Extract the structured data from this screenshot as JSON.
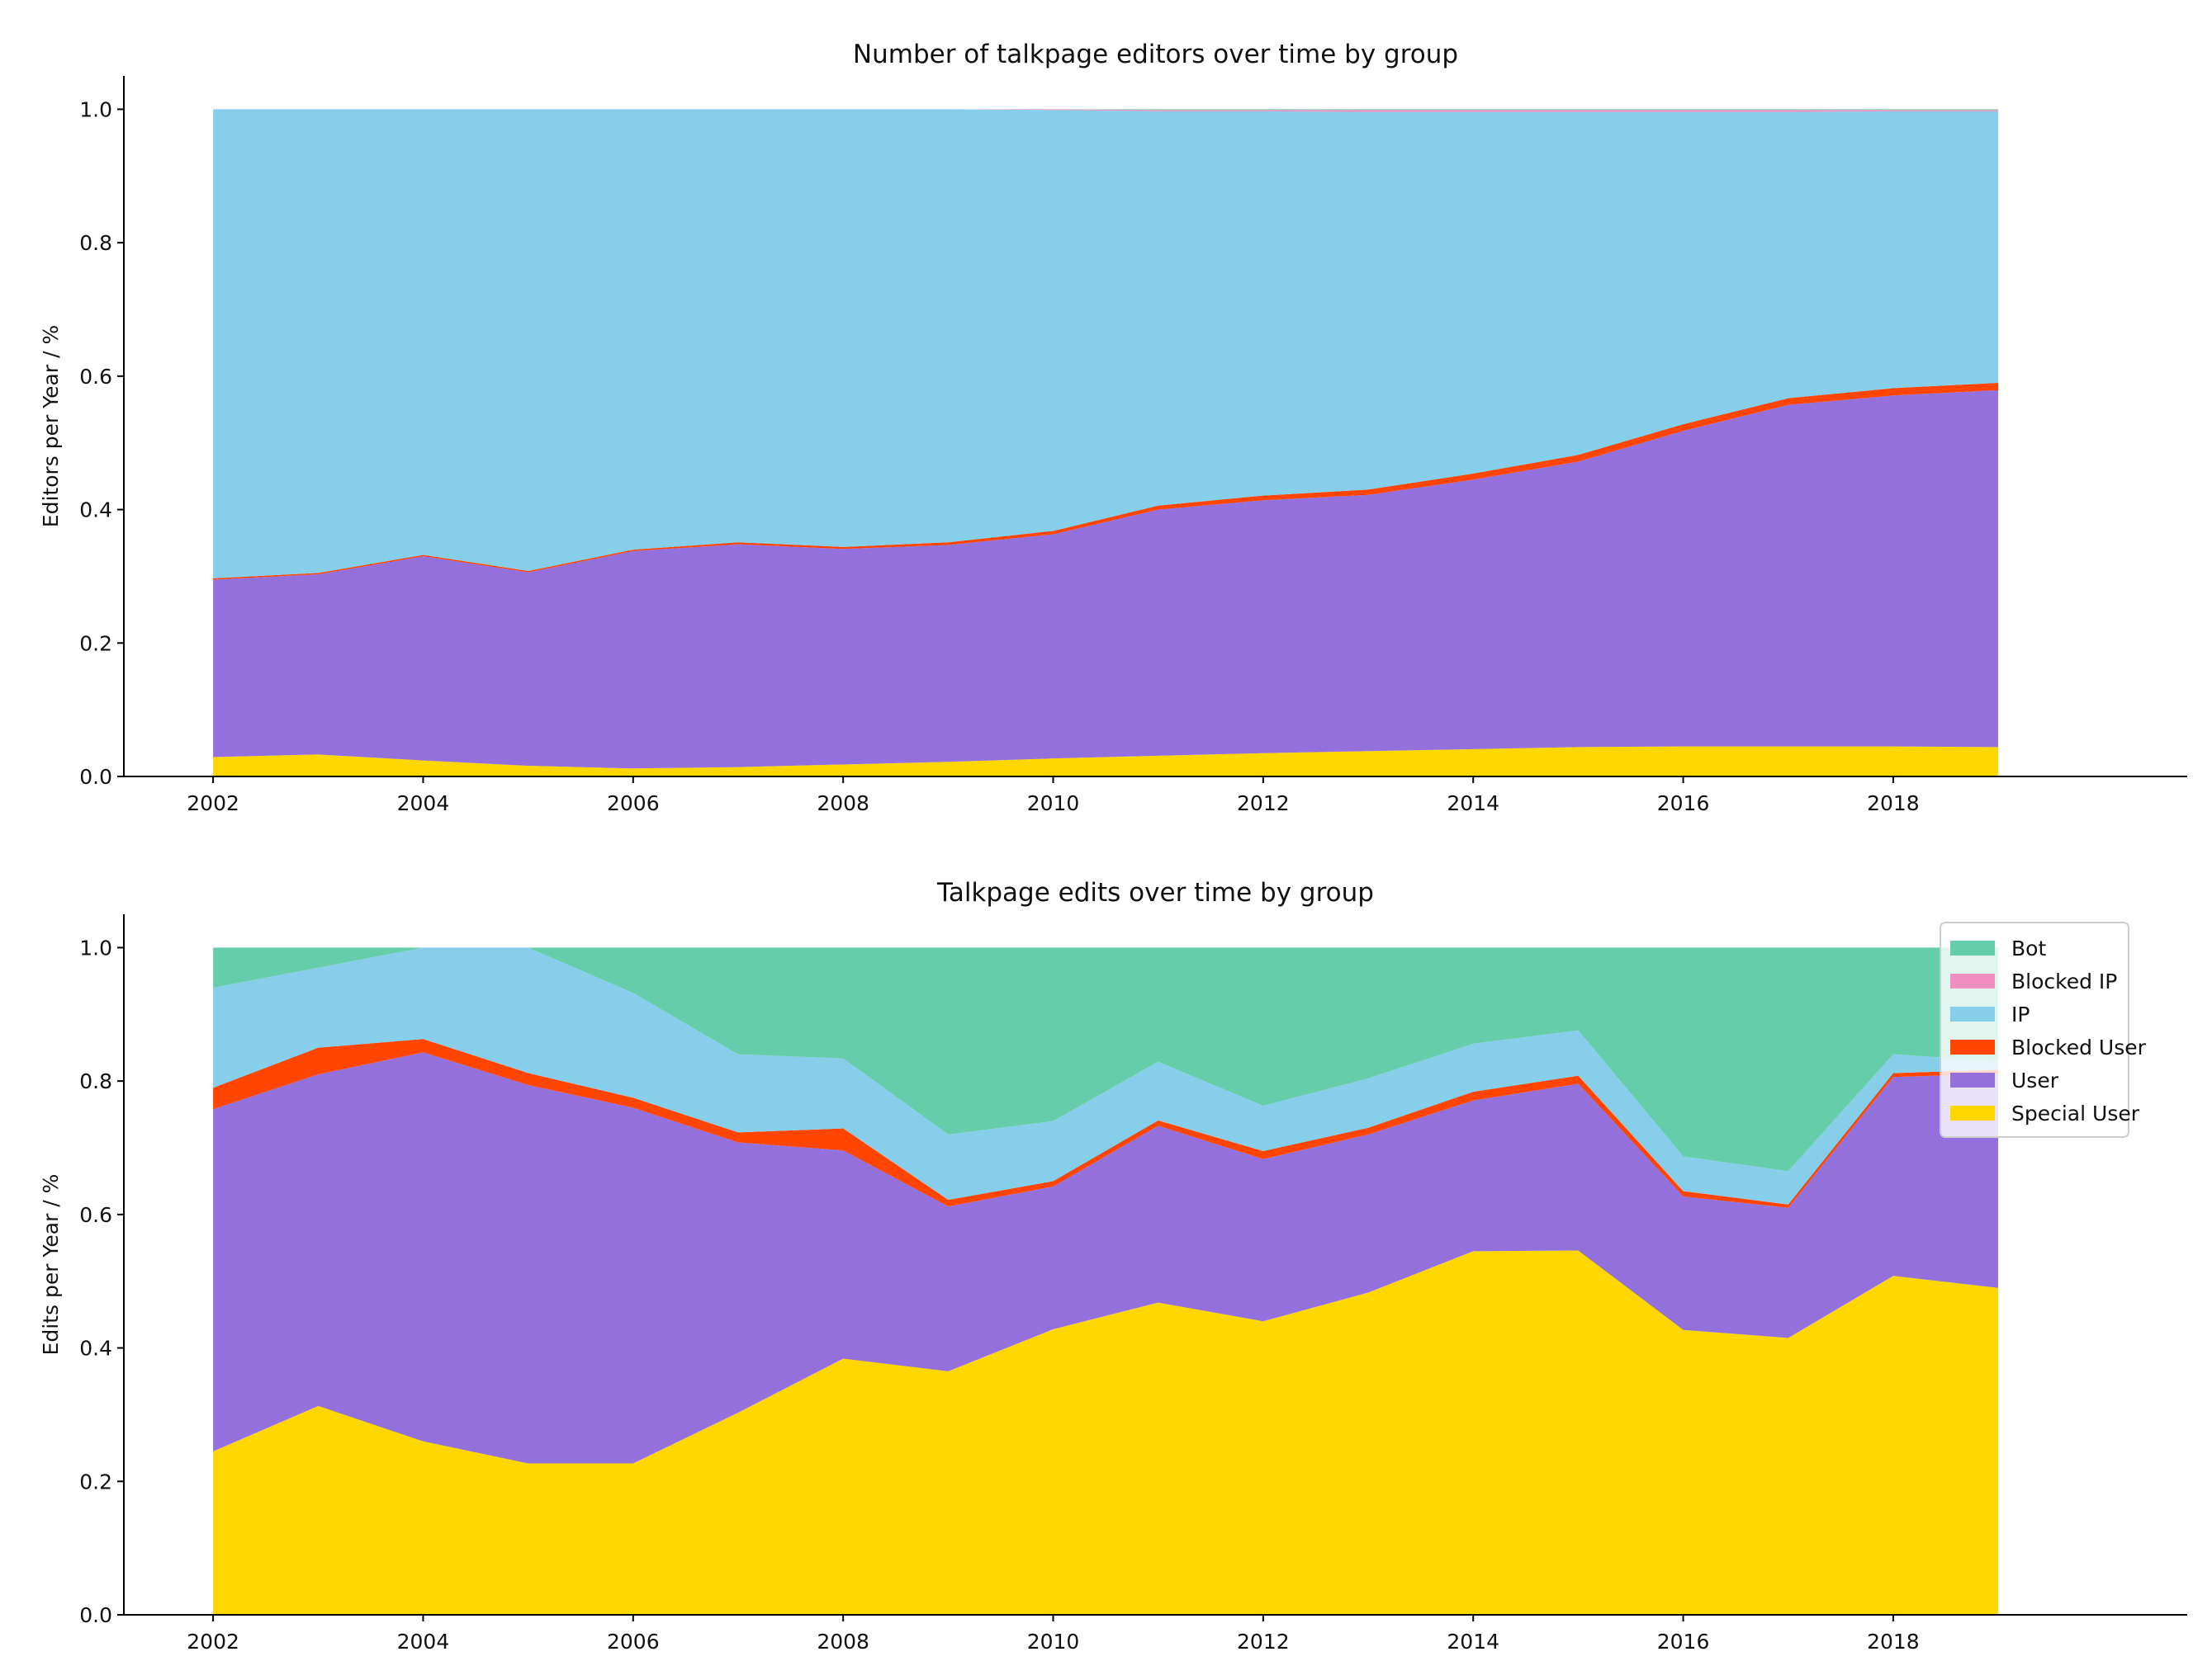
{
  "colors": {
    "Bot": "#66cdaa",
    "Blocked IP": "#f08fbf",
    "IP": "#87ceeb",
    "Blocked User": "#ff4500",
    "User": "#9370db",
    "Special User": "#ffd700"
  },
  "legend": {
    "entries": [
      "Bot",
      "Blocked IP",
      "IP",
      "Blocked User",
      "User",
      "Special User"
    ],
    "placement": "top-right of lower chart"
  },
  "chart_data": [
    {
      "type": "area",
      "stacked": true,
      "title": "Number of talkpage editors over time by group",
      "xlabel": "",
      "ylabel": "Editors per Year / %",
      "xlim": [
        2001.15,
        2020.8
      ],
      "ylim": [
        0,
        1.05
      ],
      "xticks": [
        "2002",
        "2004",
        "2006",
        "2008",
        "2010",
        "2012",
        "2014",
        "2016",
        "2018"
      ],
      "yticks": [
        "0.0",
        "0.2",
        "0.4",
        "0.6",
        "0.8",
        "1.0"
      ],
      "x": [
        2002,
        2003,
        2004,
        2005,
        2006,
        2007,
        2008,
        2009,
        2010,
        2011,
        2012,
        2013,
        2014,
        2015,
        2016,
        2017,
        2018,
        2019
      ],
      "series": [
        {
          "name": "Special User",
          "values": [
            0.029,
            0.033,
            0.024,
            0.016,
            0.012,
            0.014,
            0.018,
            0.022,
            0.027,
            0.031,
            0.035,
            0.038,
            0.041,
            0.044,
            0.045,
            0.045,
            0.045,
            0.044
          ]
        },
        {
          "name": "User",
          "values": [
            0.266,
            0.27,
            0.306,
            0.29,
            0.326,
            0.334,
            0.323,
            0.325,
            0.336,
            0.369,
            0.379,
            0.384,
            0.404,
            0.428,
            0.473,
            0.512,
            0.526,
            0.535
          ]
        },
        {
          "name": "Blocked User",
          "values": [
            0.002,
            0.002,
            0.002,
            0.002,
            0.002,
            0.003,
            0.003,
            0.004,
            0.005,
            0.006,
            0.007,
            0.008,
            0.009,
            0.01,
            0.01,
            0.01,
            0.011,
            0.011
          ]
        },
        {
          "name": "IP",
          "values": [
            0.703,
            0.695,
            0.668,
            0.692,
            0.66,
            0.649,
            0.656,
            0.649,
            0.631,
            0.591,
            0.576,
            0.566,
            0.542,
            0.514,
            0.468,
            0.429,
            0.415,
            0.407
          ]
        },
        {
          "name": "Blocked IP",
          "values": [
            0,
            0,
            0,
            0,
            0,
            0,
            0,
            0,
            0.001,
            0.002,
            0.002,
            0.003,
            0.003,
            0.003,
            0.003,
            0.003,
            0.002,
            0.002
          ]
        },
        {
          "name": "Bot",
          "values": [
            0,
            0,
            0,
            0,
            0,
            0,
            0,
            0,
            0,
            0.001,
            0.001,
            0.001,
            0.001,
            0.001,
            0.001,
            0.001,
            0.001,
            0.001
          ]
        }
      ]
    },
    {
      "type": "area",
      "stacked": true,
      "title": "Talkpage edits over time by group",
      "xlabel": "",
      "ylabel": "Edits per Year / %",
      "xlim": [
        2001.15,
        2020.8
      ],
      "ylim": [
        0,
        1.05
      ],
      "xticks": [
        "2002",
        "2004",
        "2006",
        "2008",
        "2010",
        "2012",
        "2014",
        "2016",
        "2018"
      ],
      "yticks": [
        "0.0",
        "0.2",
        "0.4",
        "0.6",
        "0.8",
        "1.0"
      ],
      "x": [
        2002,
        2003,
        2004,
        2005,
        2006,
        2007,
        2008,
        2009,
        2010,
        2011,
        2012,
        2013,
        2014,
        2015,
        2016,
        2017,
        2018,
        2019
      ],
      "series": [
        {
          "name": "Special User",
          "values": [
            0.245,
            0.313,
            0.26,
            0.227,
            0.227,
            0.303,
            0.384,
            0.365,
            0.428,
            0.468,
            0.44,
            0.483,
            0.545,
            0.546,
            0.427,
            0.415,
            0.508,
            0.49
          ]
        },
        {
          "name": "User",
          "values": [
            0.513,
            0.497,
            0.583,
            0.567,
            0.533,
            0.405,
            0.312,
            0.247,
            0.214,
            0.265,
            0.243,
            0.237,
            0.226,
            0.25,
            0.2,
            0.195,
            0.298,
            0.321
          ]
        },
        {
          "name": "Blocked User",
          "values": [
            0.032,
            0.04,
            0.02,
            0.018,
            0.015,
            0.015,
            0.033,
            0.01,
            0.008,
            0.008,
            0.012,
            0.01,
            0.013,
            0.012,
            0.008,
            0.005,
            0.006,
            0.006
          ]
        },
        {
          "name": "IP",
          "values": [
            0.15,
            0.12,
            0.137,
            0.188,
            0.157,
            0.117,
            0.105,
            0.098,
            0.09,
            0.088,
            0.068,
            0.074,
            0.072,
            0.068,
            0.052,
            0.05,
            0.028,
            0.013
          ]
        },
        {
          "name": "Blocked IP",
          "values": [
            0,
            0,
            0,
            0,
            0,
            0,
            0,
            0,
            0,
            0,
            0,
            0,
            0,
            0,
            0,
            0,
            0,
            0
          ]
        },
        {
          "name": "Bot",
          "values": [
            0.06,
            0.03,
            0.0,
            0.0,
            0.068,
            0.16,
            0.166,
            0.28,
            0.26,
            0.171,
            0.237,
            0.196,
            0.144,
            0.124,
            0.313,
            0.335,
            0.16,
            0.17
          ]
        }
      ]
    }
  ]
}
